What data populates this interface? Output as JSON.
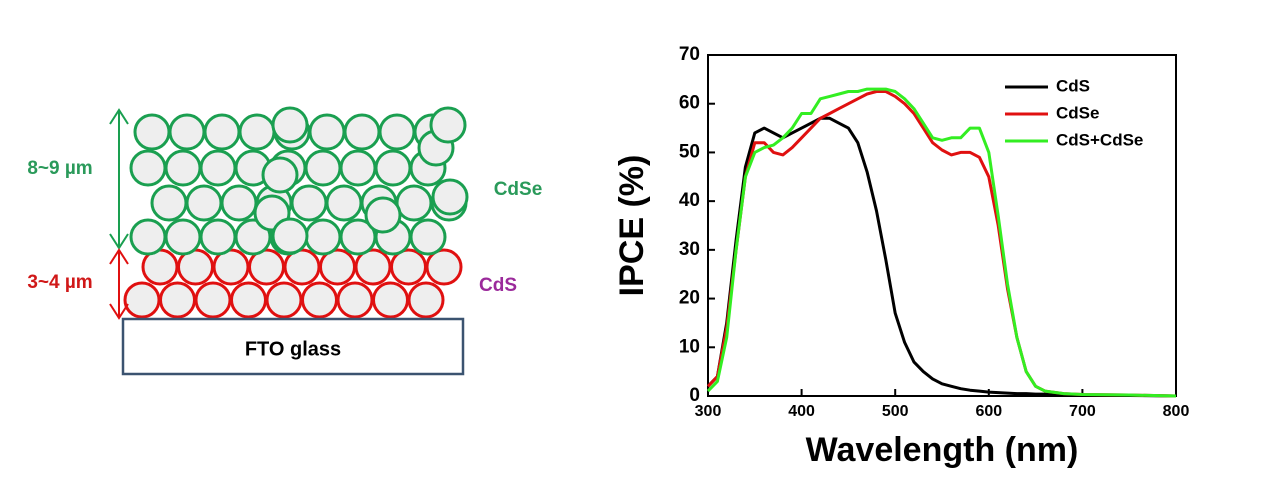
{
  "diagram": {
    "substrate": "FTO glass",
    "top_layer": {
      "label": "CdSe",
      "thickness": "8~9 µm"
    },
    "bottom_layer": {
      "label": "CdS",
      "thickness": "3~4 µm"
    }
  },
  "chart_data": {
    "type": "line",
    "xlabel": "Wavelength (nm)",
    "ylabel": "IPCE (%)",
    "x": [
      300,
      310,
      320,
      330,
      340,
      350,
      360,
      370,
      380,
      390,
      400,
      410,
      420,
      430,
      440,
      450,
      460,
      470,
      480,
      490,
      500,
      510,
      520,
      530,
      540,
      550,
      560,
      570,
      580,
      590,
      600,
      610,
      620,
      630,
      640,
      650,
      660,
      680,
      700,
      750,
      800
    ],
    "series": [
      {
        "name": "CdS",
        "color": "#000000",
        "values": [
          2,
          4,
          15,
          32,
          47,
          54,
          55,
          54,
          53,
          54,
          55,
          56,
          57,
          57,
          56,
          55,
          52,
          46,
          38,
          28,
          17,
          11,
          7,
          5,
          3.5,
          2.5,
          2,
          1.5,
          1.2,
          1,
          0.8,
          0.7,
          0.6,
          0.5,
          0.5,
          0.4,
          0.4,
          0.3,
          0.2,
          0.1,
          0
        ]
      },
      {
        "name": "CdSe",
        "color": "#e01010",
        "values": [
          2,
          4,
          14,
          30,
          45,
          52,
          52,
          50,
          49.5,
          51,
          53,
          55,
          57,
          58,
          59,
          60,
          61,
          62,
          62.5,
          62.5,
          61.5,
          60,
          58,
          55,
          52,
          50.5,
          49.5,
          50,
          50,
          49,
          45,
          35,
          22,
          12,
          5,
          2,
          1,
          0.5,
          0.3,
          0.2,
          0
        ]
      },
      {
        "name": "CdS+CdSe",
        "color": "#33ee22",
        "values": [
          1,
          3,
          12,
          30,
          45,
          50,
          51,
          51.5,
          53,
          55,
          58,
          58,
          61,
          61.5,
          62,
          62.5,
          62.5,
          63,
          63,
          63,
          62.5,
          61,
          59,
          56,
          53,
          52.5,
          53,
          53,
          55,
          55,
          50,
          37,
          23,
          12,
          5,
          2,
          1,
          0.5,
          0.3,
          0.2,
          0
        ]
      }
    ],
    "xlim": [
      300,
      800
    ],
    "xticks": [
      300,
      400,
      500,
      600,
      700,
      800
    ],
    "ylim": [
      0,
      70
    ],
    "yticks": [
      0,
      10,
      20,
      30,
      40,
      50,
      60,
      70
    ],
    "legend": "top-right"
  }
}
